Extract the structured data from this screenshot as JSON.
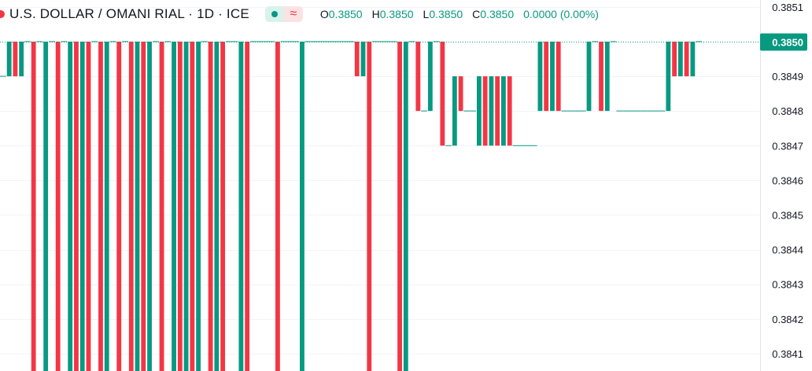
{
  "header": {
    "symbol_title": "U.S. DOLLAR / OMANI RIAL · 1D · ICE",
    "open_label": "O",
    "open_value": "0.3850",
    "high_label": "H",
    "high_value": "0.3850",
    "low_label": "L",
    "low_value": "0.3850",
    "close_label": "C",
    "close_value": "0.3850",
    "change": "0.0000 (0.00%)",
    "dot_icon": "green-dot-icon",
    "wave_icon": "approx-wave-icon",
    "symbol_icon": "red-flag-icon"
  },
  "colors": {
    "up": "#089981",
    "down": "#f23645",
    "axis_text": "#131722",
    "grid": "#f0f3fa",
    "last_price_bg": "#089981"
  },
  "chart_data": {
    "type": "candlestick",
    "ylim": [
      0.38405,
      0.38512
    ],
    "last_price": 0.385,
    "last_price_label": "0.3850",
    "y_ticks": [
      {
        "value": 0.3851,
        "label": "0.3851"
      },
      {
        "value": 0.3849,
        "label": "0.3849"
      },
      {
        "value": 0.3848,
        "label": "0.3848"
      },
      {
        "value": 0.3847,
        "label": "0.3847"
      },
      {
        "value": 0.3846,
        "label": "0.3846"
      },
      {
        "value": 0.3845,
        "label": "0.3845"
      },
      {
        "value": 0.3844,
        "label": "0.3844"
      },
      {
        "value": 0.3843,
        "label": "0.3843"
      },
      {
        "value": 0.3842,
        "label": "0.3842"
      },
      {
        "value": 0.3841,
        "label": "0.3841"
      }
    ],
    "candles": [
      {
        "o": 0.3849,
        "c": 0.3849,
        "d": "up"
      },
      {
        "o": 0.3849,
        "c": 0.385,
        "d": "up"
      },
      {
        "o": 0.385,
        "c": 0.3849,
        "d": "down"
      },
      {
        "o": 0.385,
        "c": 0.3849,
        "d": "up"
      },
      {
        "o": 0.385,
        "c": 0.385,
        "d": "flat"
      },
      {
        "o": 0.385,
        "c": 0.384,
        "d": "down"
      },
      {
        "o": 0.385,
        "c": 0.385,
        "d": "flat"
      },
      {
        "o": 0.385,
        "c": 0.384,
        "d": "up"
      },
      {
        "o": 0.385,
        "c": 0.385,
        "d": "flat"
      },
      {
        "o": 0.385,
        "c": 0.384,
        "d": "down"
      },
      {
        "o": 0.385,
        "c": 0.385,
        "d": "flat"
      },
      {
        "o": 0.385,
        "c": 0.384,
        "d": "up"
      },
      {
        "o": 0.385,
        "c": 0.384,
        "d": "down"
      },
      {
        "o": 0.385,
        "c": 0.384,
        "d": "up"
      },
      {
        "o": 0.385,
        "c": 0.384,
        "d": "down"
      },
      {
        "o": 0.385,
        "c": 0.385,
        "d": "flat"
      },
      {
        "o": 0.385,
        "c": 0.384,
        "d": "down"
      },
      {
        "o": 0.385,
        "c": 0.384,
        "d": "up"
      },
      {
        "o": 0.385,
        "c": 0.385,
        "d": "flat"
      },
      {
        "o": 0.385,
        "c": 0.384,
        "d": "down"
      },
      {
        "o": 0.385,
        "c": 0.385,
        "d": "flat"
      },
      {
        "o": 0.385,
        "c": 0.384,
        "d": "down"
      },
      {
        "o": 0.385,
        "c": 0.384,
        "d": "up"
      },
      {
        "o": 0.385,
        "c": 0.384,
        "d": "down"
      },
      {
        "o": 0.385,
        "c": 0.384,
        "d": "up"
      },
      {
        "o": 0.385,
        "c": 0.385,
        "d": "flat"
      },
      {
        "o": 0.385,
        "c": 0.384,
        "d": "down"
      },
      {
        "o": 0.385,
        "c": 0.385,
        "d": "flat"
      },
      {
        "o": 0.385,
        "c": 0.384,
        "d": "up"
      },
      {
        "o": 0.385,
        "c": 0.384,
        "d": "down"
      },
      {
        "o": 0.385,
        "c": 0.384,
        "d": "up"
      },
      {
        "o": 0.385,
        "c": 0.384,
        "d": "down"
      },
      {
        "o": 0.385,
        "c": 0.384,
        "d": "up"
      },
      {
        "o": 0.385,
        "c": 0.385,
        "d": "flat"
      },
      {
        "o": 0.385,
        "c": 0.384,
        "d": "down"
      },
      {
        "o": 0.385,
        "c": 0.384,
        "d": "up"
      },
      {
        "o": 0.385,
        "c": 0.384,
        "d": "down"
      },
      {
        "o": 0.385,
        "c": 0.385,
        "d": "flat"
      },
      {
        "o": 0.385,
        "c": 0.385,
        "d": "flat"
      },
      {
        "o": 0.385,
        "c": 0.384,
        "d": "up"
      },
      {
        "o": 0.385,
        "c": 0.384,
        "d": "down"
      },
      {
        "o": 0.385,
        "c": 0.385,
        "d": "flat"
      },
      {
        "o": 0.385,
        "c": 0.385,
        "d": "flat"
      },
      {
        "o": 0.385,
        "c": 0.385,
        "d": "flat"
      },
      {
        "o": 0.385,
        "c": 0.385,
        "d": "flat"
      },
      {
        "o": 0.385,
        "c": 0.384,
        "d": "down"
      },
      {
        "o": 0.385,
        "c": 0.385,
        "d": "flat"
      },
      {
        "o": 0.385,
        "c": 0.385,
        "d": "flat"
      },
      {
        "o": 0.385,
        "c": 0.385,
        "d": "flat"
      },
      {
        "o": 0.385,
        "c": 0.384,
        "d": "up"
      },
      {
        "o": 0.385,
        "c": 0.385,
        "d": "flat"
      },
      {
        "o": 0.385,
        "c": 0.385,
        "d": "flat"
      },
      {
        "o": 0.385,
        "c": 0.385,
        "d": "flat"
      },
      {
        "o": 0.385,
        "c": 0.385,
        "d": "flat"
      },
      {
        "o": 0.385,
        "c": 0.385,
        "d": "flat"
      },
      {
        "o": 0.385,
        "c": 0.385,
        "d": "flat"
      },
      {
        "o": 0.385,
        "c": 0.385,
        "d": "flat"
      },
      {
        "o": 0.385,
        "c": 0.385,
        "d": "flat"
      },
      {
        "o": 0.385,
        "c": 0.3849,
        "d": "down"
      },
      {
        "o": 0.3849,
        "c": 0.385,
        "d": "up"
      },
      {
        "o": 0.385,
        "c": 0.384,
        "d": "down"
      },
      {
        "o": 0.385,
        "c": 0.385,
        "d": "flat"
      },
      {
        "o": 0.385,
        "c": 0.385,
        "d": "flat"
      },
      {
        "o": 0.385,
        "c": 0.385,
        "d": "flat"
      },
      {
        "o": 0.385,
        "c": 0.385,
        "d": "flat"
      },
      {
        "o": 0.385,
        "c": 0.384,
        "d": "down"
      },
      {
        "o": 0.385,
        "c": 0.384,
        "d": "up"
      },
      {
        "o": 0.385,
        "c": 0.385,
        "d": "flat"
      },
      {
        "o": 0.385,
        "c": 0.3848,
        "d": "down"
      },
      {
        "o": 0.3848,
        "c": 0.3848,
        "d": "flat"
      },
      {
        "o": 0.3848,
        "c": 0.385,
        "d": "up"
      },
      {
        "o": 0.385,
        "c": 0.385,
        "d": "flat"
      },
      {
        "o": 0.385,
        "c": 0.3847,
        "d": "down"
      },
      {
        "o": 0.3847,
        "c": 0.3847,
        "d": "flat"
      },
      {
        "o": 0.3847,
        "c": 0.3849,
        "d": "up"
      },
      {
        "o": 0.3849,
        "c": 0.3848,
        "d": "down"
      },
      {
        "o": 0.3848,
        "c": 0.3848,
        "d": "flat"
      },
      {
        "o": 0.3848,
        "c": 0.3848,
        "d": "flat"
      },
      {
        "o": 0.3847,
        "c": 0.3849,
        "d": "up"
      },
      {
        "o": 0.3849,
        "c": 0.3847,
        "d": "down"
      },
      {
        "o": 0.3847,
        "c": 0.3849,
        "d": "up"
      },
      {
        "o": 0.3849,
        "c": 0.3847,
        "d": "down"
      },
      {
        "o": 0.3847,
        "c": 0.3849,
        "d": "up"
      },
      {
        "o": 0.3849,
        "c": 0.3847,
        "d": "down"
      },
      {
        "o": 0.3847,
        "c": 0.3847,
        "d": "flat"
      },
      {
        "o": 0.3847,
        "c": 0.3847,
        "d": "flat"
      },
      {
        "o": 0.3847,
        "c": 0.3847,
        "d": "flat"
      },
      {
        "o": 0.3847,
        "c": 0.3847,
        "d": "flat"
      },
      {
        "o": 0.3848,
        "c": 0.385,
        "d": "up"
      },
      {
        "o": 0.385,
        "c": 0.3848,
        "d": "down"
      },
      {
        "o": 0.3848,
        "c": 0.385,
        "d": "up"
      },
      {
        "o": 0.385,
        "c": 0.3848,
        "d": "down"
      },
      {
        "o": 0.3848,
        "c": 0.3848,
        "d": "flat"
      },
      {
        "o": 0.3848,
        "c": 0.3848,
        "d": "flat"
      },
      {
        "o": 0.3848,
        "c": 0.3848,
        "d": "flat"
      },
      {
        "o": 0.3848,
        "c": 0.3848,
        "d": "flat"
      },
      {
        "o": 0.3848,
        "c": 0.385,
        "d": "up"
      },
      {
        "o": 0.385,
        "c": 0.385,
        "d": "flat"
      },
      {
        "o": 0.385,
        "c": 0.3848,
        "d": "down"
      },
      {
        "o": 0.3848,
        "c": 0.385,
        "d": "up"
      },
      {
        "o": 0.385,
        "c": 0.385,
        "d": "flat"
      },
      {
        "o": 0.3848,
        "c": 0.3848,
        "d": "flat"
      },
      {
        "o": 0.3848,
        "c": 0.3848,
        "d": "flat"
      },
      {
        "o": 0.3848,
        "c": 0.3848,
        "d": "flat"
      },
      {
        "o": 0.3848,
        "c": 0.3848,
        "d": "flat"
      },
      {
        "o": 0.3848,
        "c": 0.3848,
        "d": "flat"
      },
      {
        "o": 0.3848,
        "c": 0.3848,
        "d": "flat"
      },
      {
        "o": 0.3848,
        "c": 0.3848,
        "d": "flat"
      },
      {
        "o": 0.3848,
        "c": 0.3848,
        "d": "flat"
      },
      {
        "o": 0.3848,
        "c": 0.385,
        "d": "up"
      },
      {
        "o": 0.385,
        "c": 0.3849,
        "d": "down"
      },
      {
        "o": 0.3849,
        "c": 0.385,
        "d": "up"
      },
      {
        "o": 0.385,
        "c": 0.3849,
        "d": "down"
      },
      {
        "o": 0.3849,
        "c": 0.385,
        "d": "up"
      },
      {
        "o": 0.385,
        "c": 0.385,
        "d": "flat"
      }
    ]
  }
}
